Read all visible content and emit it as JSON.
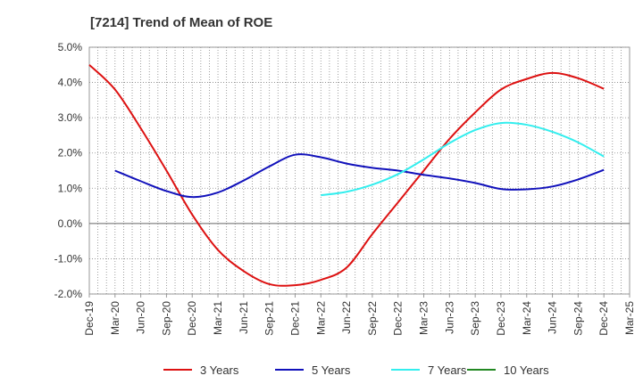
{
  "chart_data": {
    "type": "line",
    "title": "[7214]  Trend of Mean of ROE",
    "xlabel": "",
    "ylabel": "",
    "x_ticks": [
      "Dec-19",
      "Mar-20",
      "Jun-20",
      "Sep-20",
      "Dec-20",
      "Mar-21",
      "Jun-21",
      "Sep-21",
      "Dec-21",
      "Mar-22",
      "Jun-22",
      "Sep-22",
      "Dec-22",
      "Mar-23",
      "Jun-23",
      "Sep-23",
      "Dec-23",
      "Mar-24",
      "Jun-24",
      "Sep-24",
      "Dec-24",
      "Mar-25"
    ],
    "y_ticks": [
      "5.0%",
      "4.0%",
      "3.0%",
      "2.0%",
      "1.0%",
      "0.0%",
      "-1.0%",
      "-2.0%"
    ],
    "ylim": [
      -2.0,
      5.0
    ],
    "y_unit": "%",
    "grid": true,
    "legend_position": "bottom",
    "series": [
      {
        "name": "3 Years",
        "color": "#dd1111",
        "x": [
          "Dec-19",
          "Mar-20",
          "Jun-20",
          "Sep-20",
          "Dec-20",
          "Mar-21",
          "Jun-21",
          "Sep-21",
          "Dec-21",
          "Mar-22",
          "Jun-22",
          "Sep-22",
          "Dec-22",
          "Mar-23",
          "Jun-23",
          "Sep-23",
          "Dec-23",
          "Mar-24",
          "Jun-24",
          "Sep-24",
          "Dec-24"
        ],
        "values": [
          4.5,
          3.8,
          2.7,
          1.5,
          0.25,
          -0.75,
          -1.35,
          -1.72,
          -1.75,
          -1.6,
          -1.25,
          -0.3,
          0.6,
          1.5,
          2.4,
          3.15,
          3.8,
          4.1,
          4.27,
          4.12,
          3.82
        ]
      },
      {
        "name": "5 Years",
        "color": "#1111bb",
        "x": [
          "Mar-20",
          "Jun-20",
          "Sep-20",
          "Dec-20",
          "Mar-21",
          "Jun-21",
          "Sep-21",
          "Dec-21",
          "Mar-22",
          "Jun-22",
          "Sep-22",
          "Dec-22",
          "Mar-23",
          "Jun-23",
          "Sep-23",
          "Dec-23",
          "Mar-24",
          "Jun-24",
          "Sep-24",
          "Dec-24"
        ],
        "values": [
          1.5,
          1.2,
          0.92,
          0.75,
          0.88,
          1.22,
          1.62,
          1.95,
          1.88,
          1.7,
          1.58,
          1.5,
          1.38,
          1.28,
          1.15,
          0.98,
          0.97,
          1.05,
          1.25,
          1.52
        ]
      },
      {
        "name": "7 Years",
        "color": "#33eeee",
        "x": [
          "Mar-22",
          "Jun-22",
          "Sep-22",
          "Dec-22",
          "Mar-23",
          "Jun-23",
          "Sep-23",
          "Dec-23",
          "Mar-24",
          "Jun-24",
          "Sep-24",
          "Dec-24"
        ],
        "values": [
          0.8,
          0.9,
          1.1,
          1.4,
          1.82,
          2.28,
          2.65,
          2.85,
          2.8,
          2.6,
          2.3,
          1.9
        ]
      },
      {
        "name": "10 Years",
        "color": "#228822",
        "x": [],
        "values": []
      }
    ]
  }
}
